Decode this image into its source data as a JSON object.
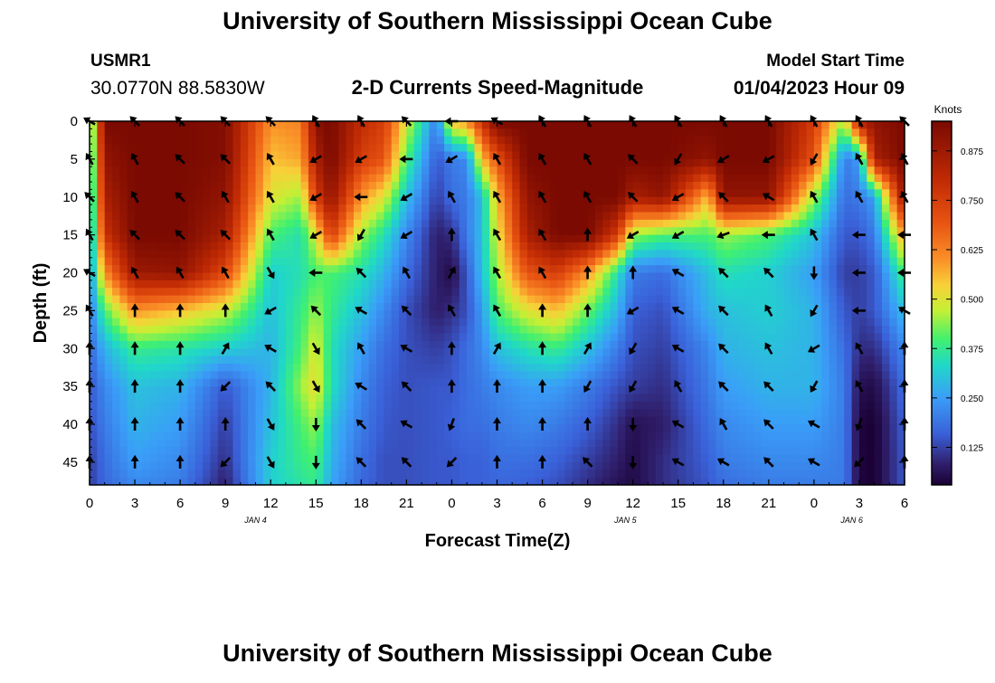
{
  "header": {
    "title": "University of Southern Mississippi Ocean Cube",
    "station_id": "USMR1",
    "coordinates": "30.0770N  88.5830W",
    "subtitle": "2-D Currents Speed-Magnitude",
    "model_label": "Model Start Time",
    "model_time": "01/04/2023 Hour 09"
  },
  "footer": {
    "title": "University of Southern Mississippi Ocean Cube"
  },
  "chart_data": {
    "type": "heatmap",
    "title": "2-D Currents Speed-Magnitude",
    "xlabel": "Forecast Time(Z)",
    "ylabel": "Depth (ft)",
    "x_ticks": [
      "0",
      "3",
      "6",
      "9",
      "12",
      "15",
      "18",
      "21",
      "0",
      "3",
      "6",
      "9",
      "12",
      "15",
      "18",
      "21",
      "0",
      "3",
      "6"
    ],
    "x_range_hours": [
      0,
      54
    ],
    "date_labels": [
      {
        "text": "JAN 4",
        "hour": 11
      },
      {
        "text": "JAN 5",
        "hour": 35.5
      },
      {
        "text": "JAN 6",
        "hour": 50.5
      }
    ],
    "y_ticks": [
      0,
      5,
      10,
      15,
      20,
      25,
      30,
      35,
      40,
      45
    ],
    "y_range_ft": [
      0,
      48
    ],
    "colorbar": {
      "label": "Knots",
      "ticks": [
        "0.875",
        "0.750",
        "0.625",
        "0.500",
        "0.375",
        "0.250",
        "0.125"
      ],
      "range": [
        0.03,
        0.95
      ]
    },
    "speed_hours": [
      0,
      1,
      3,
      6,
      9,
      12,
      14,
      15,
      16,
      18,
      19.5,
      21,
      23,
      24,
      25,
      26,
      27,
      29,
      31,
      33,
      35,
      36,
      38,
      41,
      42,
      45,
      48,
      50,
      51,
      52,
      54
    ],
    "speed_depths": [
      0,
      5,
      10,
      15,
      20,
      25,
      30,
      35,
      40,
      45,
      48
    ],
    "speed_grid_knots": [
      [
        0.3,
        0.95,
        0.95,
        0.95,
        0.93,
        0.6,
        0.62,
        0.92,
        0.95,
        0.8,
        0.75,
        0.5,
        0.2,
        0.55,
        0.6,
        0.78,
        0.95,
        0.95,
        0.95,
        0.95,
        0.95,
        0.95,
        0.95,
        0.95,
        0.95,
        0.95,
        0.75,
        0.45,
        0.85,
        0.9,
        0.95
      ],
      [
        0.27,
        0.9,
        0.95,
        0.95,
        0.93,
        0.55,
        0.58,
        0.85,
        0.95,
        0.75,
        0.7,
        0.4,
        0.15,
        0.2,
        0.22,
        0.55,
        0.7,
        0.95,
        0.95,
        0.95,
        0.95,
        0.95,
        0.95,
        0.9,
        0.95,
        0.95,
        0.7,
        0.2,
        0.25,
        0.85,
        0.95
      ],
      [
        0.25,
        0.85,
        0.95,
        0.95,
        0.9,
        0.5,
        0.45,
        0.75,
        0.9,
        0.6,
        0.5,
        0.3,
        0.12,
        0.18,
        0.2,
        0.3,
        0.55,
        0.9,
        0.95,
        0.95,
        0.95,
        0.85,
        0.9,
        0.55,
        0.9,
        0.9,
        0.45,
        0.18,
        0.2,
        0.25,
        0.9
      ],
      [
        0.23,
        0.78,
        0.95,
        0.95,
        0.85,
        0.4,
        0.35,
        0.5,
        0.75,
        0.45,
        0.35,
        0.22,
        0.08,
        0.1,
        0.2,
        0.3,
        0.5,
        0.85,
        0.95,
        0.95,
        0.75,
        0.45,
        0.4,
        0.4,
        0.45,
        0.4,
        0.3,
        0.15,
        0.15,
        0.2,
        0.6
      ],
      [
        0.22,
        0.6,
        0.88,
        0.9,
        0.72,
        0.32,
        0.35,
        0.4,
        0.4,
        0.35,
        0.28,
        0.18,
        0.08,
        0.05,
        0.15,
        0.3,
        0.45,
        0.7,
        0.75,
        0.6,
        0.35,
        0.2,
        0.18,
        0.3,
        0.35,
        0.32,
        0.25,
        0.12,
        0.12,
        0.15,
        0.4
      ],
      [
        0.2,
        0.4,
        0.6,
        0.55,
        0.48,
        0.3,
        0.38,
        0.45,
        0.38,
        0.3,
        0.22,
        0.14,
        0.08,
        0.1,
        0.14,
        0.25,
        0.4,
        0.5,
        0.55,
        0.42,
        0.28,
        0.16,
        0.14,
        0.28,
        0.3,
        0.32,
        0.28,
        0.15,
        0.12,
        0.15,
        0.3
      ],
      [
        0.17,
        0.28,
        0.38,
        0.36,
        0.32,
        0.28,
        0.4,
        0.5,
        0.35,
        0.25,
        0.18,
        0.14,
        0.12,
        0.14,
        0.18,
        0.22,
        0.3,
        0.35,
        0.38,
        0.3,
        0.2,
        0.14,
        0.12,
        0.22,
        0.28,
        0.3,
        0.28,
        0.18,
        0.1,
        0.1,
        0.22
      ],
      [
        0.15,
        0.22,
        0.3,
        0.28,
        0.15,
        0.28,
        0.45,
        0.52,
        0.35,
        0.22,
        0.16,
        0.14,
        0.15,
        0.15,
        0.18,
        0.2,
        0.22,
        0.25,
        0.25,
        0.2,
        0.14,
        0.12,
        0.1,
        0.2,
        0.25,
        0.28,
        0.28,
        0.2,
        0.06,
        0.05,
        0.18
      ],
      [
        0.14,
        0.2,
        0.28,
        0.25,
        0.12,
        0.3,
        0.4,
        0.45,
        0.3,
        0.2,
        0.15,
        0.14,
        0.15,
        0.16,
        0.18,
        0.18,
        0.2,
        0.22,
        0.2,
        0.16,
        0.1,
        0.06,
        0.08,
        0.18,
        0.22,
        0.25,
        0.25,
        0.2,
        0.04,
        0.03,
        0.16
      ],
      [
        0.12,
        0.18,
        0.25,
        0.22,
        0.1,
        0.32,
        0.38,
        0.4,
        0.28,
        0.18,
        0.14,
        0.14,
        0.15,
        0.15,
        0.16,
        0.16,
        0.18,
        0.18,
        0.16,
        0.12,
        0.08,
        0.05,
        0.1,
        0.16,
        0.2,
        0.22,
        0.22,
        0.2,
        0.04,
        0.03,
        0.15
      ],
      [
        0.12,
        0.17,
        0.22,
        0.2,
        0.08,
        0.32,
        0.36,
        0.38,
        0.26,
        0.17,
        0.14,
        0.14,
        0.15,
        0.15,
        0.16,
        0.16,
        0.17,
        0.16,
        0.14,
        0.1,
        0.06,
        0.05,
        0.1,
        0.15,
        0.18,
        0.2,
        0.2,
        0.2,
        0.04,
        0.03,
        0.15
      ]
    ],
    "arrow_hours": [
      0,
      3,
      6,
      9,
      12,
      15,
      18,
      21,
      24,
      27,
      30,
      33,
      36,
      39,
      42,
      45,
      48,
      51,
      54
    ],
    "arrow_depths": [
      0,
      5,
      10,
      15,
      20,
      25,
      30,
      35,
      40,
      45
    ],
    "arrow_direction_deg": [
      [
        300,
        315,
        315,
        315,
        315,
        330,
        330,
        315,
        270,
        300,
        330,
        330,
        330,
        330,
        330,
        330,
        330,
        330,
        315
      ],
      [
        330,
        330,
        315,
        315,
        330,
        240,
        240,
        270,
        240,
        330,
        330,
        330,
        315,
        210,
        240,
        240,
        210,
        330,
        330
      ],
      [
        315,
        330,
        315,
        330,
        330,
        240,
        270,
        240,
        330,
        330,
        330,
        330,
        315,
        240,
        315,
        300,
        330,
        330,
        330
      ],
      [
        330,
        315,
        315,
        315,
        330,
        240,
        210,
        240,
        0,
        330,
        330,
        0,
        240,
        240,
        250,
        270,
        330,
        270,
        270
      ],
      [
        300,
        330,
        330,
        330,
        150,
        270,
        315,
        330,
        30,
        330,
        330,
        0,
        0,
        300,
        315,
        315,
        180,
        270,
        270
      ],
      [
        330,
        0,
        0,
        0,
        240,
        315,
        300,
        315,
        330,
        330,
        0,
        0,
        240,
        300,
        315,
        330,
        210,
        270,
        300
      ],
      [
        0,
        0,
        0,
        30,
        300,
        150,
        330,
        300,
        0,
        30,
        0,
        30,
        210,
        300,
        315,
        330,
        240,
        330,
        0
      ],
      [
        0,
        0,
        0,
        225,
        315,
        150,
        300,
        315,
        0,
        0,
        0,
        210,
        210,
        330,
        315,
        315,
        210,
        330,
        0
      ],
      [
        0,
        0,
        0,
        0,
        150,
        180,
        315,
        300,
        200,
        0,
        0,
        0,
        180,
        300,
        330,
        315,
        300,
        200,
        0
      ],
      [
        0,
        0,
        0,
        225,
        150,
        180,
        315,
        315,
        225,
        0,
        0,
        315,
        180,
        300,
        300,
        315,
        300,
        225,
        0
      ]
    ]
  }
}
